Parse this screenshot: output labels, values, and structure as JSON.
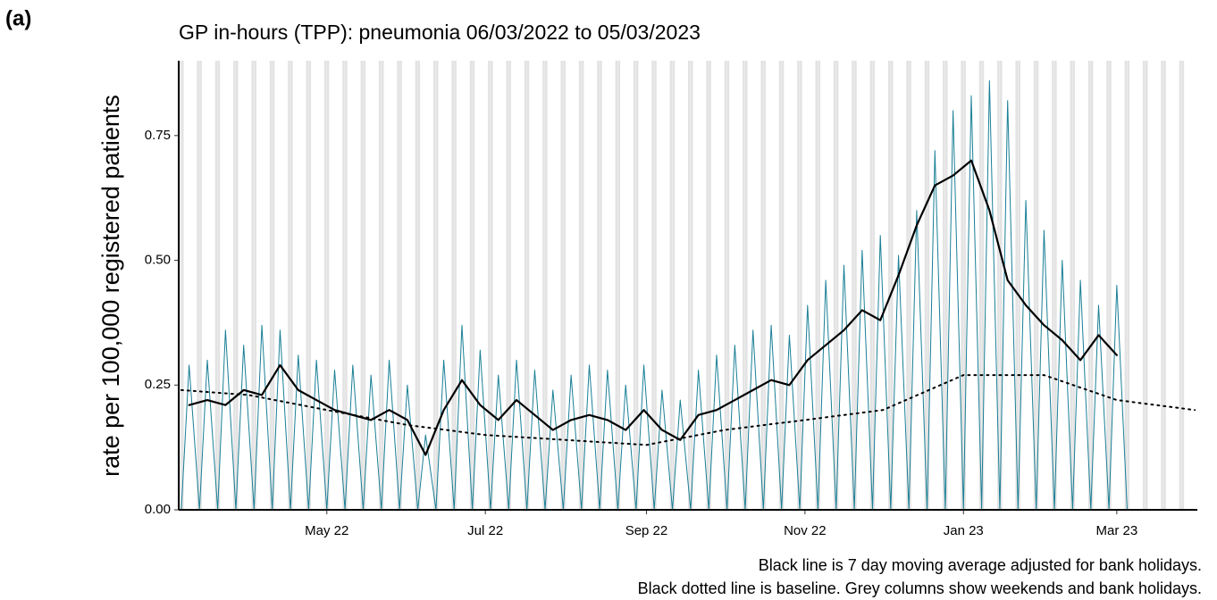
{
  "panel_label": "(a)",
  "chart_data": {
    "type": "line",
    "title": "GP in-hours (TPP): pneumonia 06/03/2022 to 05/03/2023",
    "y_label": "rate per 100,000 registered patients",
    "notes": [
      "Black line is 7 day moving average adjusted for bank holidays.",
      "Black dotted line is baseline. Grey columns show weekends and bank holidays."
    ],
    "xlim": [
      "2022-03-05",
      "2023-03-31"
    ],
    "xticks": [
      {
        "value": "2022-05-01",
        "label": "May 22"
      },
      {
        "value": "2022-07-01",
        "label": "Jul 22"
      },
      {
        "value": "2022-09-01",
        "label": "Sep 22"
      },
      {
        "value": "2022-11-01",
        "label": "Nov 22"
      },
      {
        "value": "2023-01-01",
        "label": "Jan 23"
      },
      {
        "value": "2023-03-01",
        "label": "Mar 23"
      }
    ],
    "ylim": [
      0,
      0.9
    ],
    "yticks": [
      {
        "value": 0,
        "label": "0.00"
      },
      0.25,
      {
        "value": 0.5,
        "label": "0.50"
      },
      0.75
    ],
    "weekend_shading": "#e3e3e3",
    "series": [
      {
        "color": "#1a7f96",
        "line_width": 1,
        "dash": "solid",
        "x": [
          "2022-03-06",
          "2022-03-09",
          "2022-03-13",
          "2022-03-16",
          "2022-03-20",
          "2022-03-23",
          "2022-03-27",
          "2022-03-30",
          "2022-04-03",
          "2022-04-06",
          "2022-04-10",
          "2022-04-13",
          "2022-04-17",
          "2022-04-20",
          "2022-04-24",
          "2022-04-27",
          "2022-05-01",
          "2022-05-04",
          "2022-05-08",
          "2022-05-11",
          "2022-05-15",
          "2022-05-18",
          "2022-05-22",
          "2022-05-25",
          "2022-05-29",
          "2022-06-01",
          "2022-06-05",
          "2022-06-08",
          "2022-06-12",
          "2022-06-15",
          "2022-06-19",
          "2022-06-22",
          "2022-06-26",
          "2022-06-29",
          "2022-07-03",
          "2022-07-06",
          "2022-07-10",
          "2022-07-13",
          "2022-07-17",
          "2022-07-20",
          "2022-07-24",
          "2022-07-27",
          "2022-07-31",
          "2022-08-03",
          "2022-08-07",
          "2022-08-10",
          "2022-08-14",
          "2022-08-17",
          "2022-08-21",
          "2022-08-24",
          "2022-08-28",
          "2022-08-31",
          "2022-09-04",
          "2022-09-07",
          "2022-09-11",
          "2022-09-14",
          "2022-09-18",
          "2022-09-21",
          "2022-09-25",
          "2022-09-28",
          "2022-10-02",
          "2022-10-05",
          "2022-10-09",
          "2022-10-12",
          "2022-10-16",
          "2022-10-19",
          "2022-10-23",
          "2022-10-26",
          "2022-10-30",
          "2022-11-02",
          "2022-11-06",
          "2022-11-09",
          "2022-11-13",
          "2022-11-16",
          "2022-11-20",
          "2022-11-23",
          "2022-11-27",
          "2022-11-30",
          "2022-12-04",
          "2022-12-07",
          "2022-12-11",
          "2022-12-14",
          "2022-12-18",
          "2022-12-21",
          "2022-12-25",
          "2022-12-28",
          "2023-01-01",
          "2023-01-04",
          "2023-01-08",
          "2023-01-11",
          "2023-01-15",
          "2023-01-18",
          "2023-01-22",
          "2023-01-25",
          "2023-01-29",
          "2023-02-01",
          "2023-02-05",
          "2023-02-08",
          "2023-02-12",
          "2023-02-15",
          "2023-02-19",
          "2023-02-22",
          "2023-02-26",
          "2023-03-01",
          "2023-03-05"
        ],
        "values": [
          0,
          0.29,
          0,
          0.3,
          0,
          0.36,
          0,
          0.33,
          0,
          0.37,
          0,
          0.36,
          0,
          0.31,
          0,
          0.3,
          0,
          0.28,
          0,
          0.29,
          0,
          0.27,
          0,
          0.3,
          0,
          0.25,
          0,
          0.15,
          0,
          0.3,
          0,
          0.37,
          0,
          0.32,
          0,
          0.27,
          0,
          0.3,
          0,
          0.28,
          0,
          0.24,
          0,
          0.27,
          0,
          0.29,
          0,
          0.28,
          0,
          0.25,
          0,
          0.29,
          0,
          0.24,
          0,
          0.22,
          0,
          0.28,
          0,
          0.31,
          0,
          0.33,
          0,
          0.36,
          0,
          0.37,
          0,
          0.35,
          0,
          0.41,
          0,
          0.46,
          0,
          0.49,
          0,
          0.52,
          0,
          0.55,
          0,
          0.51,
          0,
          0.6,
          0,
          0.72,
          0,
          0.8,
          0,
          0.83,
          0,
          0.86,
          0,
          0.82,
          0,
          0.62,
          0,
          0.56,
          0,
          0.5,
          0,
          0.46,
          0,
          0.41,
          0,
          0.45,
          0
        ]
      },
      {
        "color": "#000000",
        "line_width": 2.2,
        "dash": "solid",
        "x": [
          "2022-03-09",
          "2022-03-16",
          "2022-03-23",
          "2022-03-30",
          "2022-04-06",
          "2022-04-13",
          "2022-04-20",
          "2022-04-27",
          "2022-05-04",
          "2022-05-11",
          "2022-05-18",
          "2022-05-25",
          "2022-06-01",
          "2022-06-08",
          "2022-06-15",
          "2022-06-22",
          "2022-06-29",
          "2022-07-06",
          "2022-07-13",
          "2022-07-20",
          "2022-07-27",
          "2022-08-03",
          "2022-08-10",
          "2022-08-17",
          "2022-08-24",
          "2022-08-31",
          "2022-09-07",
          "2022-09-14",
          "2022-09-21",
          "2022-09-28",
          "2022-10-05",
          "2022-10-12",
          "2022-10-19",
          "2022-10-26",
          "2022-11-02",
          "2022-11-09",
          "2022-11-16",
          "2022-11-23",
          "2022-11-30",
          "2022-12-07",
          "2022-12-14",
          "2022-12-21",
          "2022-12-28",
          "2023-01-04",
          "2023-01-11",
          "2023-01-18",
          "2023-01-25",
          "2023-02-01",
          "2023-02-08",
          "2023-02-15",
          "2023-02-22",
          "2023-03-01"
        ],
        "values": [
          0.21,
          0.22,
          0.21,
          0.24,
          0.23,
          0.29,
          0.24,
          0.22,
          0.2,
          0.19,
          0.18,
          0.2,
          0.18,
          0.11,
          0.2,
          0.26,
          0.21,
          0.18,
          0.22,
          0.19,
          0.16,
          0.18,
          0.19,
          0.18,
          0.16,
          0.2,
          0.16,
          0.14,
          0.19,
          0.2,
          0.22,
          0.24,
          0.26,
          0.25,
          0.3,
          0.33,
          0.36,
          0.4,
          0.38,
          0.47,
          0.57,
          0.65,
          0.67,
          0.7,
          0.6,
          0.46,
          0.41,
          0.37,
          0.34,
          0.3,
          0.35,
          0.31
        ]
      },
      {
        "color": "#000000",
        "line_width": 2,
        "dash": "dotted",
        "x": [
          "2022-03-06",
          "2022-04-01",
          "2022-05-01",
          "2022-06-01",
          "2022-07-01",
          "2022-08-01",
          "2022-09-01",
          "2022-10-01",
          "2022-11-01",
          "2022-12-01",
          "2023-01-01",
          "2023-02-01",
          "2023-03-01",
          "2023-03-31"
        ],
        "values": [
          0.24,
          0.23,
          0.2,
          0.17,
          0.15,
          0.14,
          0.13,
          0.16,
          0.18,
          0.2,
          0.27,
          0.27,
          0.22,
          0.2
        ]
      }
    ]
  }
}
